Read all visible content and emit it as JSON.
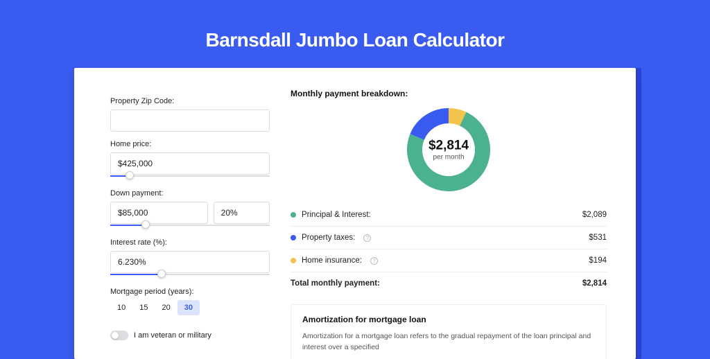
{
  "page_title": "Barnsdall Jumbo Loan Calculator",
  "colors": {
    "bg": "#3a5bf0",
    "accent": "#3a5bf0",
    "shadow_accent": "#2b44d8",
    "border": "#dcdde1"
  },
  "form": {
    "zip_label": "Property Zip Code:",
    "zip_value": "",
    "home_price_label": "Home price:",
    "home_price_value": "$425,000",
    "home_price_slider_pct": 12,
    "down_payment_label": "Down payment:",
    "down_payment_value": "$85,000",
    "down_payment_pct_value": "20%",
    "down_payment_slider_pct": 22,
    "interest_label": "Interest rate (%):",
    "interest_value": "6.230%",
    "interest_slider_pct": 32,
    "period_label": "Mortgage period (years):",
    "periods": [
      "10",
      "15",
      "20",
      "30"
    ],
    "period_selected_index": 3,
    "veteran_label": "I am veteran or military",
    "veteran_on": false
  },
  "breakdown": {
    "title": "Monthly payment breakdown:",
    "total_value": "$2,814",
    "total_sub": "per month",
    "donut": {
      "size": 120,
      "thickness": 22,
      "series": [
        {
          "name": "principal_interest",
          "value": 2089,
          "color": "#4bb18f",
          "pct": 74.2
        },
        {
          "name": "property_taxes",
          "value": 531,
          "color": "#3a5bf0",
          "pct": 18.9
        },
        {
          "name": "home_insurance",
          "value": 194,
          "color": "#f3c44b",
          "pct": 6.9
        }
      ],
      "start_angle_deg": -65
    },
    "rows": [
      {
        "label": "Principal & Interest:",
        "dot_color": "#4bb18f",
        "info": false,
        "value": "$2,089"
      },
      {
        "label": "Property taxes:",
        "dot_color": "#3a5bf0",
        "info": true,
        "value": "$531"
      },
      {
        "label": "Home insurance:",
        "dot_color": "#f3c44b",
        "info": true,
        "value": "$194"
      }
    ],
    "total_label": "Total monthly payment:",
    "total_row_value": "$2,814"
  },
  "amort": {
    "title": "Amortization for mortgage loan",
    "text": "Amortization for a mortgage loan refers to the gradual repayment of the loan principal and interest over a specified"
  }
}
